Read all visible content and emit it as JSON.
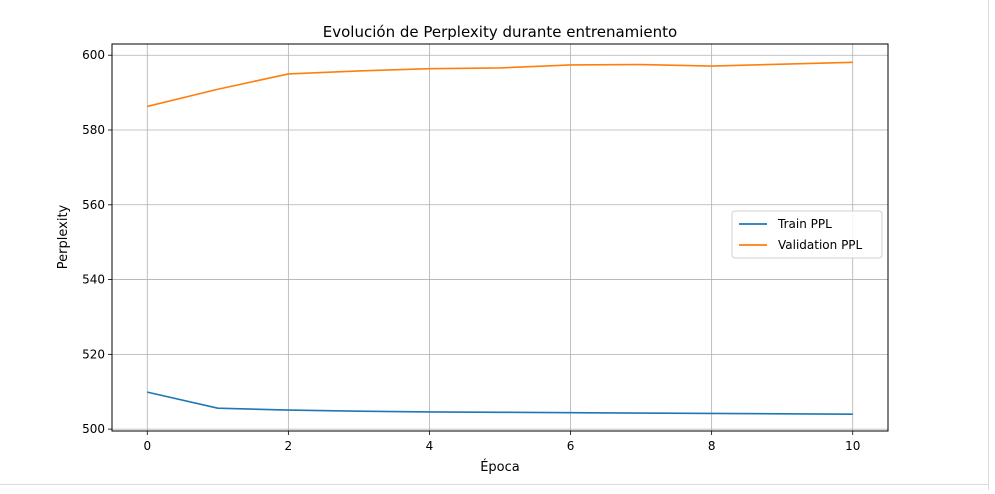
{
  "chart_data": {
    "type": "line",
    "title": "Evolución de Perplexity durante entrenamiento",
    "xlabel": "Época",
    "ylabel": "Perplexity",
    "xlim": [
      -0.5,
      10.5
    ],
    "ylim": [
      499.5,
      603
    ],
    "x_ticks": [
      0,
      2,
      4,
      6,
      8,
      10
    ],
    "y_ticks": [
      500,
      520,
      540,
      560,
      580,
      600
    ],
    "grid": true,
    "legend_position": "center-right",
    "x": [
      0,
      1,
      2,
      3,
      4,
      5,
      6,
      7,
      8,
      9,
      10
    ],
    "series": [
      {
        "name": "Train PPL",
        "color": "#1f77b4",
        "values": [
          509.9,
          505.6,
          505.1,
          504.8,
          504.6,
          504.5,
          504.4,
          504.3,
          504.2,
          504.1,
          504.0
        ]
      },
      {
        "name": "Validation PPL",
        "color": "#ff7f0e",
        "values": [
          586.3,
          590.9,
          595.0,
          595.8,
          596.4,
          596.6,
          597.4,
          597.5,
          597.1,
          597.6,
          598.1
        ]
      }
    ]
  }
}
